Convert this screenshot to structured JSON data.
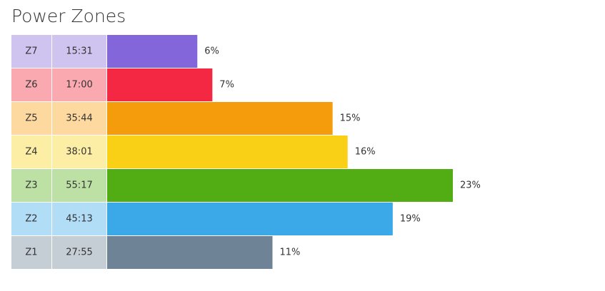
{
  "chart_data": {
    "type": "bar",
    "title": "Power Zones",
    "categories": [
      "Z7",
      "Z6",
      "Z5",
      "Z4",
      "Z3",
      "Z2",
      "Z1"
    ],
    "times": [
      "15:31",
      "17:00",
      "35:44",
      "38:01",
      "55:17",
      "45:13",
      "27:55"
    ],
    "values": [
      6,
      7,
      15,
      16,
      23,
      19,
      11
    ],
    "value_labels": [
      "6%",
      "7%",
      "15%",
      "16%",
      "23%",
      "19%",
      "11%"
    ],
    "colors": [
      "#8466db",
      "#f52843",
      "#f59c0d",
      "#f9d016",
      "#52ad15",
      "#3ba9e8",
      "#6e8496"
    ],
    "label_colors": [
      "#cfc3ef",
      "#fba9b1",
      "#fdd9a0",
      "#fdeea5",
      "#bde0a5",
      "#b1ddf6",
      "#c5ced5"
    ]
  }
}
